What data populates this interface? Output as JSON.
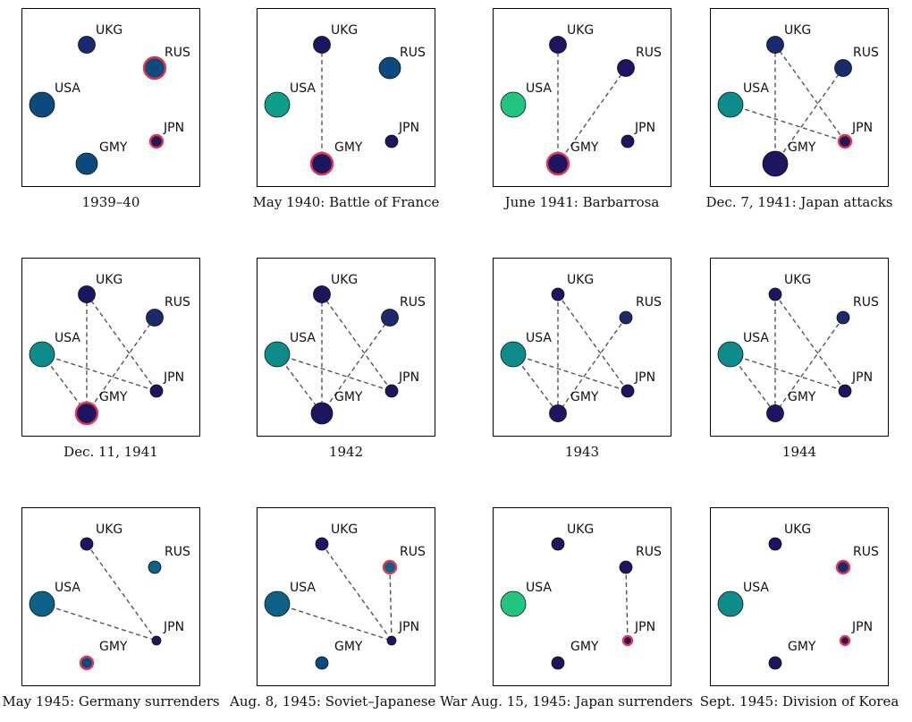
{
  "palette": {
    "dark_navy": "#1c1660",
    "navy": "#1a2a6c",
    "blue": "#0b4a7e",
    "steel": "#0d6186",
    "teal": "#0e8c8c",
    "teal_green": "#0e9e8a",
    "green": "#22c480",
    "highlight_ring": "#e5374a",
    "edge": "#555555"
  },
  "countries": [
    "UKG",
    "RUS",
    "USA",
    "JPN",
    "GMY"
  ],
  "panels": [
    {
      "caption": "1939–40",
      "nodes": {
        "UKG": {
          "color": "navy",
          "size": "medium",
          "ring": false
        },
        "RUS": {
          "color": "blue",
          "size": "large",
          "ring": true
        },
        "USA": {
          "color": "blue",
          "size": "xlarge",
          "ring": false
        },
        "JPN": {
          "color": "dark_navy",
          "size": "small",
          "ring": true
        },
        "GMY": {
          "color": "blue",
          "size": "large",
          "ring": false
        }
      },
      "edges": []
    },
    {
      "caption": "May 1940: Battle of France",
      "nodes": {
        "UKG": {
          "color": "dark_navy",
          "size": "medium",
          "ring": false
        },
        "RUS": {
          "color": "blue",
          "size": "large",
          "ring": false
        },
        "USA": {
          "color": "teal_green",
          "size": "xlarge",
          "ring": false
        },
        "JPN": {
          "color": "dark_navy",
          "size": "small",
          "ring": false
        },
        "GMY": {
          "color": "dark_navy",
          "size": "large",
          "ring": true
        }
      },
      "edges": [
        [
          "UKG",
          "GMY"
        ]
      ]
    },
    {
      "caption": "June 1941: Barbarrosa",
      "nodes": {
        "UKG": {
          "color": "dark_navy",
          "size": "medium",
          "ring": false
        },
        "RUS": {
          "color": "dark_navy",
          "size": "medium",
          "ring": false
        },
        "USA": {
          "color": "green",
          "size": "xlarge",
          "ring": false
        },
        "JPN": {
          "color": "dark_navy",
          "size": "small",
          "ring": false
        },
        "GMY": {
          "color": "dark_navy",
          "size": "large",
          "ring": true
        }
      },
      "edges": [
        [
          "UKG",
          "GMY"
        ],
        [
          "RUS",
          "GMY"
        ]
      ]
    },
    {
      "caption": "Dec. 7, 1941: Japan attacks",
      "nodes": {
        "UKG": {
          "color": "navy",
          "size": "medium",
          "ring": false
        },
        "RUS": {
          "color": "navy",
          "size": "medium",
          "ring": false
        },
        "USA": {
          "color": "teal",
          "size": "xlarge",
          "ring": false
        },
        "JPN": {
          "color": "dark_navy",
          "size": "small",
          "ring": true
        },
        "GMY": {
          "color": "dark_navy",
          "size": "xlarge",
          "ring": false
        }
      },
      "edges": [
        [
          "UKG",
          "GMY"
        ],
        [
          "UKG",
          "JPN"
        ],
        [
          "RUS",
          "GMY"
        ],
        [
          "USA",
          "JPN"
        ]
      ]
    },
    {
      "caption": "Dec. 11, 1941",
      "nodes": {
        "UKG": {
          "color": "dark_navy",
          "size": "medium",
          "ring": false
        },
        "RUS": {
          "color": "navy",
          "size": "medium",
          "ring": false
        },
        "USA": {
          "color": "teal",
          "size": "xlarge",
          "ring": false
        },
        "JPN": {
          "color": "dark_navy",
          "size": "small",
          "ring": false
        },
        "GMY": {
          "color": "dark_navy",
          "size": "large",
          "ring": true
        }
      },
      "edges": [
        [
          "UKG",
          "GMY"
        ],
        [
          "UKG",
          "JPN"
        ],
        [
          "RUS",
          "GMY"
        ],
        [
          "USA",
          "JPN"
        ],
        [
          "USA",
          "GMY"
        ]
      ]
    },
    {
      "caption": "1942",
      "nodes": {
        "UKG": {
          "color": "dark_navy",
          "size": "medium",
          "ring": false
        },
        "RUS": {
          "color": "navy",
          "size": "medium",
          "ring": false
        },
        "USA": {
          "color": "teal",
          "size": "xlarge",
          "ring": false
        },
        "JPN": {
          "color": "dark_navy",
          "size": "small",
          "ring": false
        },
        "GMY": {
          "color": "dark_navy",
          "size": "large",
          "ring": false
        }
      },
      "edges": [
        [
          "UKG",
          "GMY"
        ],
        [
          "UKG",
          "JPN"
        ],
        [
          "RUS",
          "GMY"
        ],
        [
          "USA",
          "JPN"
        ],
        [
          "USA",
          "GMY"
        ]
      ]
    },
    {
      "caption": "1943",
      "nodes": {
        "UKG": {
          "color": "dark_navy",
          "size": "small",
          "ring": false
        },
        "RUS": {
          "color": "navy",
          "size": "small",
          "ring": false
        },
        "USA": {
          "color": "teal",
          "size": "xlarge",
          "ring": false
        },
        "JPN": {
          "color": "dark_navy",
          "size": "small",
          "ring": false
        },
        "GMY": {
          "color": "dark_navy",
          "size": "medium",
          "ring": false
        }
      },
      "edges": [
        [
          "UKG",
          "GMY"
        ],
        [
          "UKG",
          "JPN"
        ],
        [
          "RUS",
          "GMY"
        ],
        [
          "USA",
          "JPN"
        ],
        [
          "USA",
          "GMY"
        ]
      ]
    },
    {
      "caption": "1944",
      "nodes": {
        "UKG": {
          "color": "dark_navy",
          "size": "small",
          "ring": false
        },
        "RUS": {
          "color": "navy",
          "size": "small",
          "ring": false
        },
        "USA": {
          "color": "teal",
          "size": "xlarge",
          "ring": false
        },
        "JPN": {
          "color": "dark_navy",
          "size": "small",
          "ring": false
        },
        "GMY": {
          "color": "dark_navy",
          "size": "medium",
          "ring": false
        }
      },
      "edges": [
        [
          "UKG",
          "GMY"
        ],
        [
          "UKG",
          "JPN"
        ],
        [
          "RUS",
          "GMY"
        ],
        [
          "USA",
          "JPN"
        ],
        [
          "USA",
          "GMY"
        ]
      ]
    },
    {
      "caption": "May 1945: Germany surrenders",
      "nodes": {
        "UKG": {
          "color": "dark_navy",
          "size": "small",
          "ring": false
        },
        "RUS": {
          "color": "steel",
          "size": "small",
          "ring": false
        },
        "USA": {
          "color": "steel",
          "size": "xlarge",
          "ring": false
        },
        "JPN": {
          "color": "dark_navy",
          "size": "xsmall",
          "ring": false
        },
        "GMY": {
          "color": "blue",
          "size": "small",
          "ring": true
        }
      },
      "edges": [
        [
          "UKG",
          "JPN"
        ],
        [
          "USA",
          "JPN"
        ]
      ]
    },
    {
      "caption": "Aug. 8, 1945: Soviet–Japanese War",
      "nodes": {
        "UKG": {
          "color": "dark_navy",
          "size": "small",
          "ring": false
        },
        "RUS": {
          "color": "steel",
          "size": "small",
          "ring": true
        },
        "USA": {
          "color": "steel",
          "size": "xlarge",
          "ring": false
        },
        "JPN": {
          "color": "dark_navy",
          "size": "xsmall",
          "ring": false
        },
        "GMY": {
          "color": "blue",
          "size": "small",
          "ring": false
        }
      },
      "edges": [
        [
          "UKG",
          "JPN"
        ],
        [
          "USA",
          "JPN"
        ],
        [
          "RUS",
          "JPN"
        ]
      ]
    },
    {
      "caption": "Aug. 15, 1945: Japan surrenders",
      "nodes": {
        "UKG": {
          "color": "dark_navy",
          "size": "small",
          "ring": false
        },
        "RUS": {
          "color": "dark_navy",
          "size": "small",
          "ring": false
        },
        "USA": {
          "color": "green",
          "size": "xlarge",
          "ring": false
        },
        "JPN": {
          "color": "dark_navy",
          "size": "xsmall",
          "ring": true
        },
        "GMY": {
          "color": "dark_navy",
          "size": "small",
          "ring": false
        }
      },
      "edges": [
        [
          "RUS",
          "JPN"
        ]
      ]
    },
    {
      "caption": "Sept. 1945: Division of Korea",
      "nodes": {
        "UKG": {
          "color": "dark_navy",
          "size": "small",
          "ring": false
        },
        "RUS": {
          "color": "navy",
          "size": "small",
          "ring": true
        },
        "USA": {
          "color": "teal",
          "size": "xlarge",
          "ring": false
        },
        "JPN": {
          "color": "dark_navy",
          "size": "xsmall",
          "ring": true
        },
        "GMY": {
          "color": "dark_navy",
          "size": "small",
          "ring": false
        }
      },
      "edges": []
    }
  ]
}
